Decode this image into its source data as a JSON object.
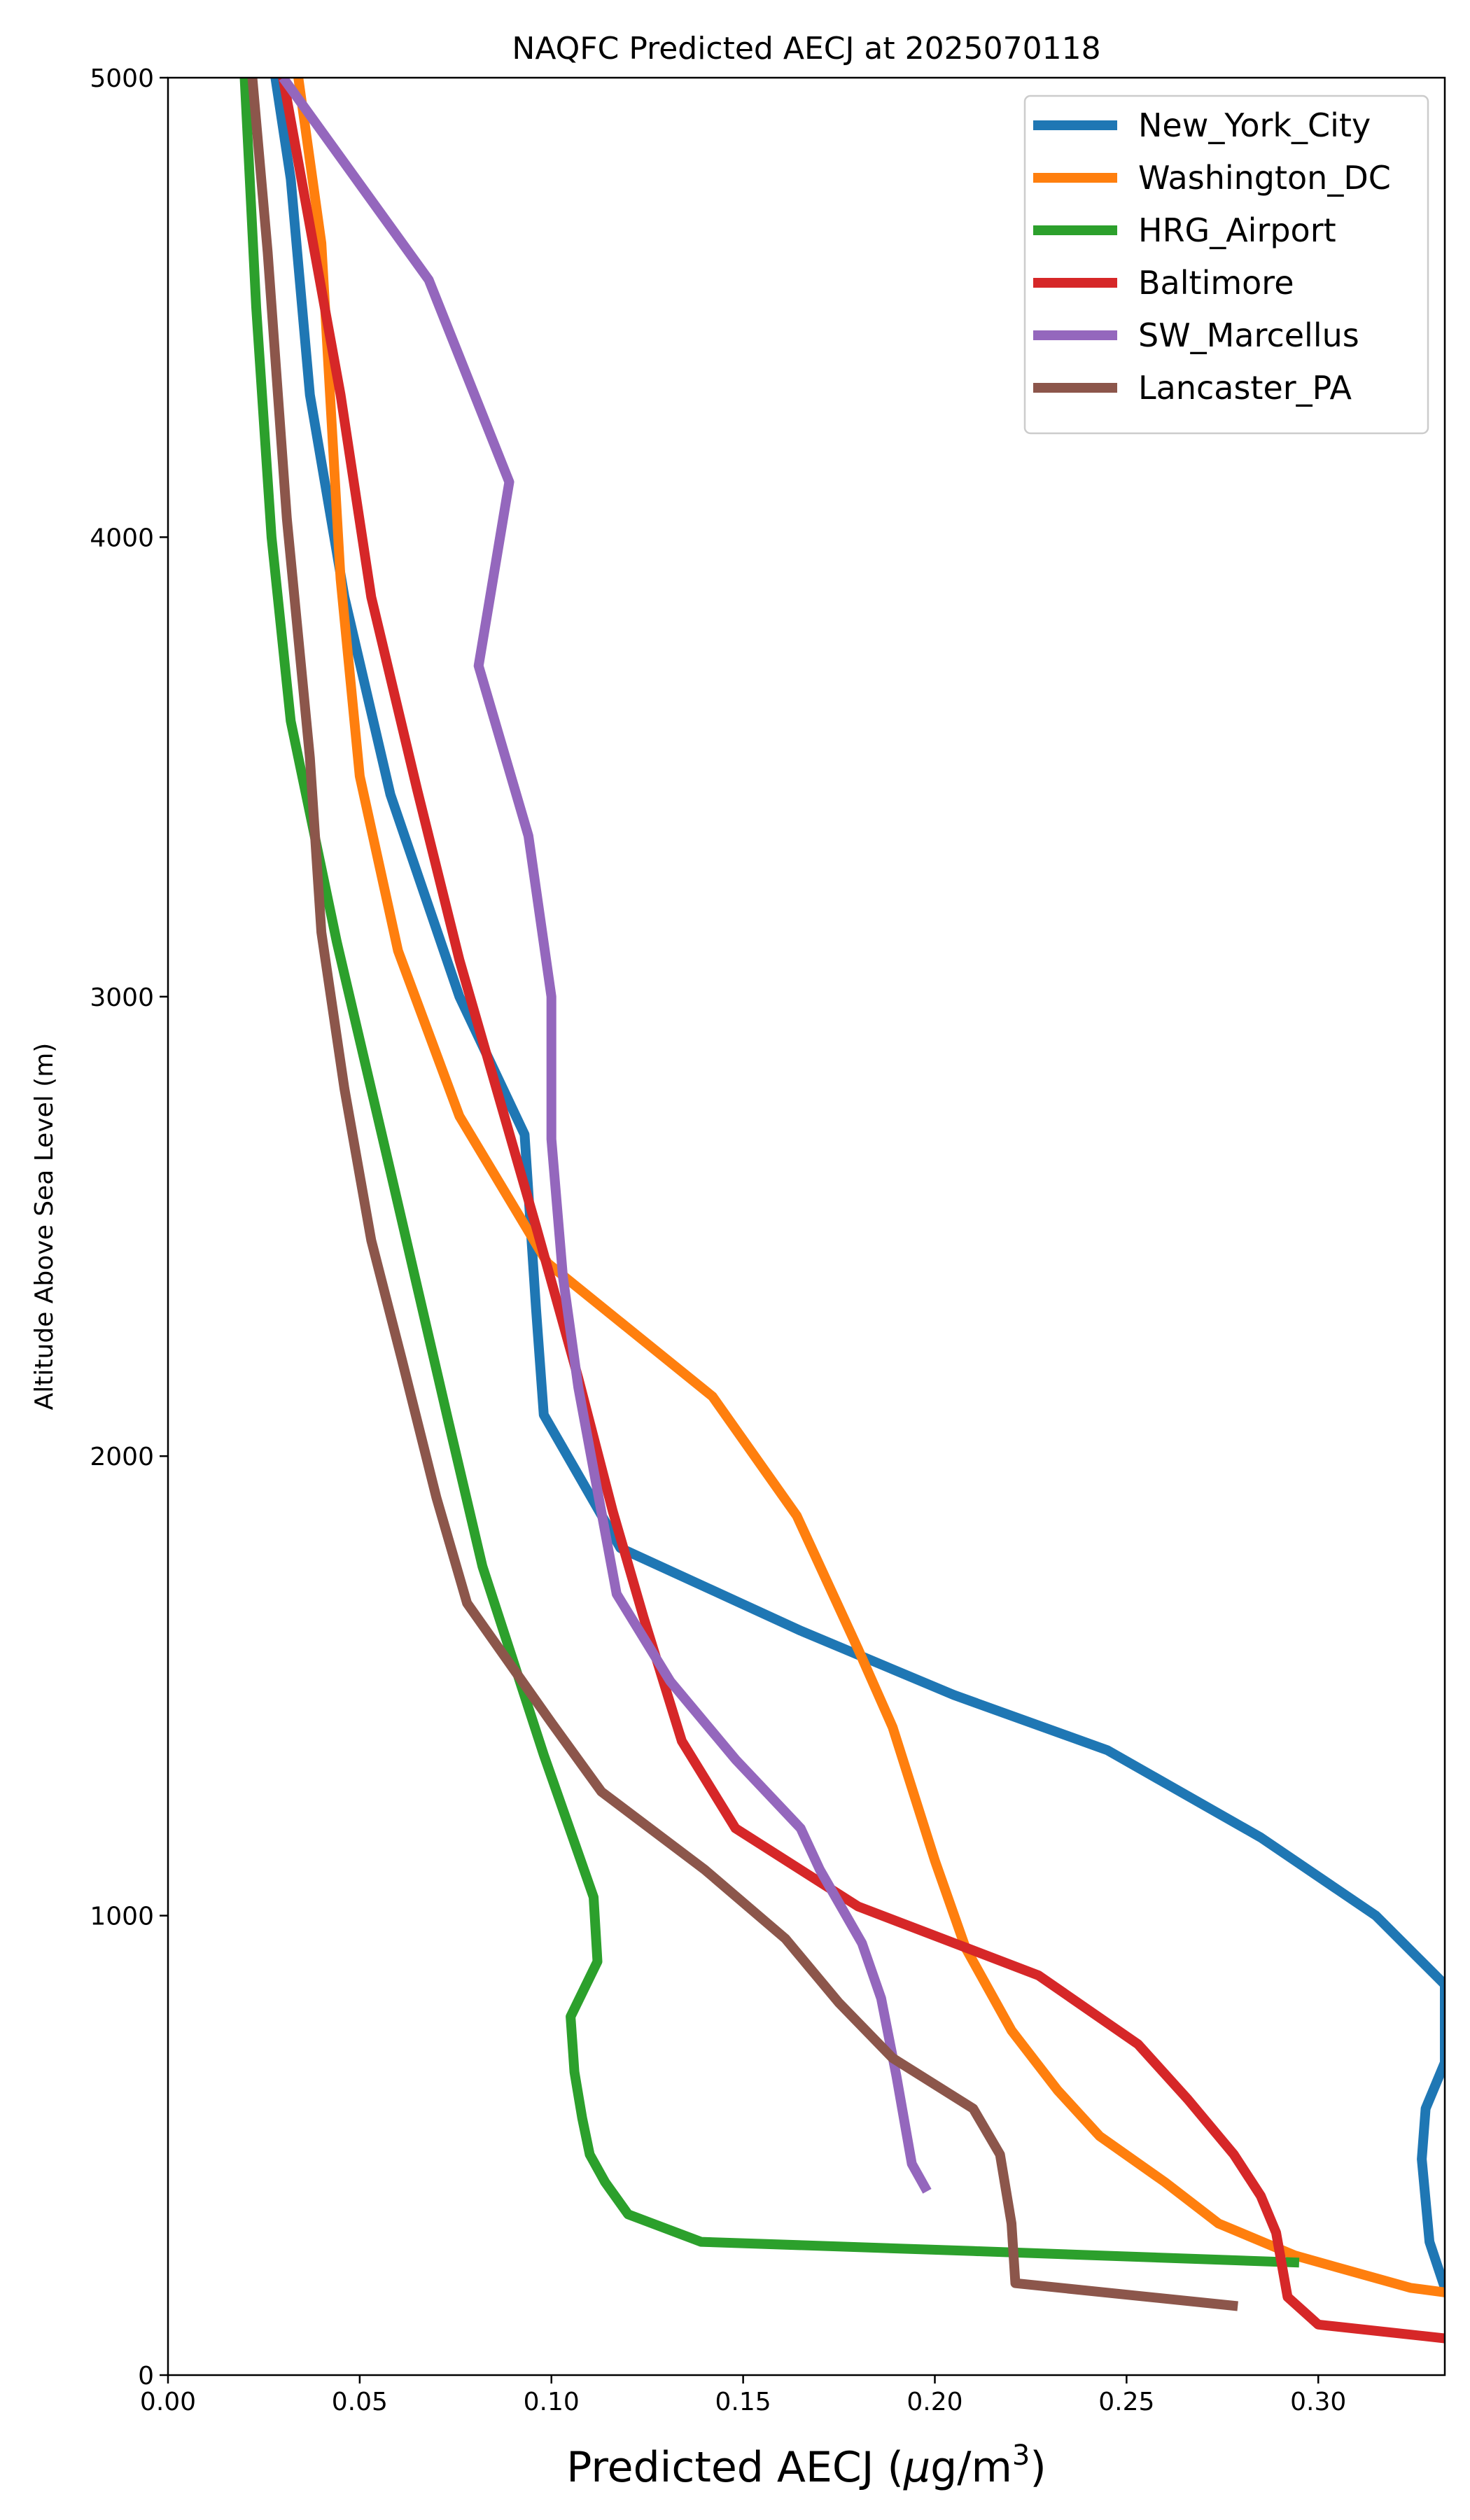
{
  "chart_data": {
    "type": "line",
    "title": "NAQFC Predicted AECJ at 2025070118",
    "xlabel_main": "Predicted AECJ (",
    "xlabel_mu": "μ",
    "xlabel_unit": "g/m",
    "xlabel_sup": "3",
    "xlabel_close": ")",
    "ylabel": "Altitude Above Sea Level (m)",
    "xlim": [
      0.0,
      0.333
    ],
    "ylim": [
      0,
      5000
    ],
    "xticks": [
      0.0,
      0.05,
      0.1,
      0.15,
      0.2,
      0.25,
      0.3
    ],
    "xtick_labels": [
      "0.00",
      "0.05",
      "0.10",
      "0.15",
      "0.20",
      "0.25",
      "0.30"
    ],
    "yticks": [
      0,
      1000,
      2000,
      3000,
      4000,
      5000
    ],
    "ytick_labels": [
      "0",
      "1000",
      "2000",
      "3000",
      "4000",
      "5000"
    ],
    "grid": false,
    "legend_position": "top-right",
    "series": [
      {
        "name": "New_York_City",
        "color": "#1f77b4",
        "points": [
          [
            0.028,
            5000
          ],
          [
            0.032,
            4780
          ],
          [
            0.037,
            4310
          ],
          [
            0.046,
            3870
          ],
          [
            0.058,
            3440
          ],
          [
            0.076,
            3000
          ],
          [
            0.093,
            2700
          ],
          [
            0.096,
            2320
          ],
          [
            0.098,
            2090
          ],
          [
            0.118,
            1800
          ],
          [
            0.165,
            1620
          ],
          [
            0.205,
            1480
          ],
          [
            0.245,
            1360
          ],
          [
            0.285,
            1170
          ],
          [
            0.315,
            1000
          ],
          [
            0.333,
            850
          ],
          [
            0.333,
            680
          ],
          [
            0.328,
            580
          ],
          [
            0.327,
            470
          ],
          [
            0.329,
            290
          ],
          [
            0.333,
            190
          ]
        ]
      },
      {
        "name": "Washington_DC",
        "color": "#ff7f0e",
        "points": [
          [
            0.034,
            5000
          ],
          [
            0.04,
            4640
          ],
          [
            0.045,
            3910
          ],
          [
            0.05,
            3480
          ],
          [
            0.06,
            3100
          ],
          [
            0.076,
            2740
          ],
          [
            0.099,
            2420
          ],
          [
            0.142,
            2130
          ],
          [
            0.164,
            1870
          ],
          [
            0.18,
            1580
          ],
          [
            0.189,
            1410
          ],
          [
            0.2,
            1120
          ],
          [
            0.208,
            930
          ],
          [
            0.22,
            750
          ],
          [
            0.232,
            620
          ],
          [
            0.243,
            520
          ],
          [
            0.26,
            420
          ],
          [
            0.274,
            330
          ],
          [
            0.294,
            260
          ],
          [
            0.324,
            190
          ],
          [
            0.333,
            180
          ]
        ]
      },
      {
        "name": "HRG_Airport",
        "color": "#2ca02c",
        "points": [
          [
            0.02,
            5000
          ],
          [
            0.023,
            4500
          ],
          [
            0.027,
            4000
          ],
          [
            0.032,
            3600
          ],
          [
            0.044,
            3120
          ],
          [
            0.058,
            2620
          ],
          [
            0.073,
            2080
          ],
          [
            0.082,
            1760
          ],
          [
            0.098,
            1350
          ],
          [
            0.111,
            1040
          ],
          [
            0.112,
            900
          ],
          [
            0.105,
            780
          ],
          [
            0.106,
            660
          ],
          [
            0.108,
            560
          ],
          [
            0.11,
            480
          ],
          [
            0.114,
            420
          ],
          [
            0.12,
            350
          ],
          [
            0.139,
            290
          ],
          [
            0.21,
            270
          ],
          [
            0.295,
            245
          ]
        ]
      },
      {
        "name": "Baltimore",
        "color": "#d62728",
        "points": [
          [
            0.03,
            5000
          ],
          [
            0.035,
            4770
          ],
          [
            0.045,
            4310
          ],
          [
            0.053,
            3870
          ],
          [
            0.065,
            3450
          ],
          [
            0.076,
            3080
          ],
          [
            0.096,
            2500
          ],
          [
            0.107,
            2170
          ],
          [
            0.116,
            1880
          ],
          [
            0.124,
            1650
          ],
          [
            0.134,
            1380
          ],
          [
            0.148,
            1190
          ],
          [
            0.18,
            1020
          ],
          [
            0.227,
            870
          ],
          [
            0.253,
            720
          ],
          [
            0.266,
            600
          ],
          [
            0.278,
            480
          ],
          [
            0.285,
            390
          ],
          [
            0.289,
            310
          ],
          [
            0.292,
            170
          ],
          [
            0.3,
            110
          ],
          [
            0.333,
            80
          ]
        ]
      },
      {
        "name": "SW_Marcellus",
        "color": "#9467bd",
        "points": [
          [
            0.03,
            5000
          ],
          [
            0.068,
            4560
          ],
          [
            0.089,
            4120
          ],
          [
            0.081,
            3720
          ],
          [
            0.094,
            3350
          ],
          [
            0.1,
            3000
          ],
          [
            0.1,
            2690
          ],
          [
            0.103,
            2390
          ],
          [
            0.107,
            2150
          ],
          [
            0.117,
            1700
          ],
          [
            0.131,
            1510
          ],
          [
            0.148,
            1340
          ],
          [
            0.165,
            1190
          ],
          [
            0.17,
            1100
          ],
          [
            0.181,
            940
          ],
          [
            0.186,
            820
          ],
          [
            0.19,
            650
          ],
          [
            0.194,
            460
          ],
          [
            0.198,
            400
          ]
        ]
      },
      {
        "name": "Lancaster_PA",
        "color": "#8c564b",
        "points": [
          [
            0.022,
            5000
          ],
          [
            0.026,
            4620
          ],
          [
            0.031,
            4040
          ],
          [
            0.037,
            3520
          ],
          [
            0.04,
            3140
          ],
          [
            0.046,
            2800
          ],
          [
            0.053,
            2470
          ],
          [
            0.061,
            2210
          ],
          [
            0.07,
            1910
          ],
          [
            0.078,
            1680
          ],
          [
            0.1,
            1420
          ],
          [
            0.113,
            1270
          ],
          [
            0.14,
            1100
          ],
          [
            0.161,
            950
          ],
          [
            0.175,
            810
          ],
          [
            0.189,
            690
          ],
          [
            0.21,
            580
          ],
          [
            0.217,
            480
          ],
          [
            0.22,
            330
          ],
          [
            0.221,
            200
          ],
          [
            0.279,
            150
          ]
        ]
      }
    ]
  }
}
